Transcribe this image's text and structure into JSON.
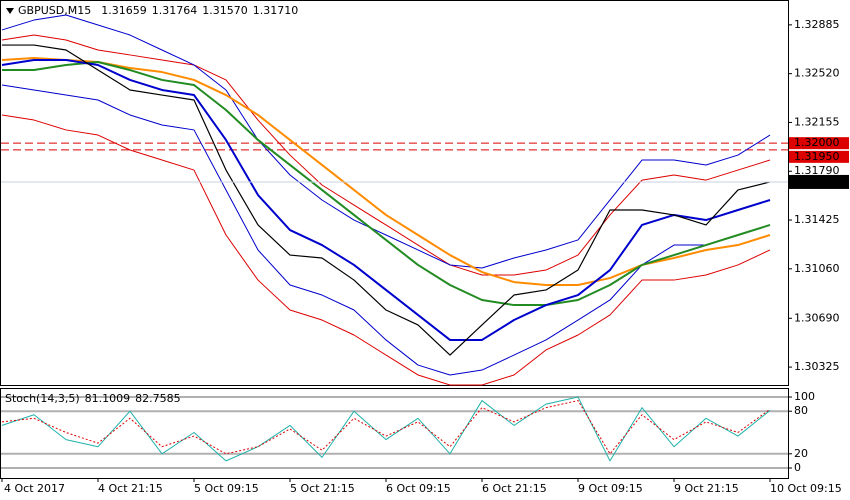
{
  "chart_data": [
    {
      "type": "line",
      "title": "GBPUSD,M15",
      "header_values": [
        {
          "value": 1.31659,
          "label": "1.31659"
        },
        {
          "value": 1.31764,
          "label": "1.31764"
        },
        {
          "value": 1.3157,
          "label": "1.31570"
        },
        {
          "value": 1.3171,
          "label": "1.31710"
        }
      ],
      "categories": [
        "4 Oct 2017",
        null,
        null,
        "4 Oct 21:15",
        null,
        null,
        "5 Oct 09:15",
        null,
        null,
        "5 Oct 21:15",
        null,
        null,
        "6 Oct 09:15",
        null,
        null,
        "6 Oct 21:15",
        null,
        null,
        "9 Oct 09:15",
        null,
        null,
        "9 Oct 21:15",
        null,
        null,
        "10 Oct 09:15"
      ],
      "series": [
        {
          "color": "#dd0000",
          "width": 1,
          "values": [
            1.32772,
            1.32809,
            1.32772,
            1.32697,
            1.3266,
            1.32622,
            1.32585,
            1.32473,
            1.32173,
            1.31911,
            1.31687,
            1.31537,
            1.31388,
            1.31238,
            1.31089,
            1.31014,
            1.31014,
            1.31051,
            1.31163,
            1.31463,
            1.31724,
            1.31762,
            1.31724,
            1.31799,
            1.31874
          ]
        },
        {
          "color": "#dd0000",
          "width": 1,
          "values": [
            1.32211,
            1.32173,
            1.32099,
            1.32061,
            1.31949,
            1.31874,
            1.31799,
            1.31313,
            1.30976,
            1.30752,
            1.30677,
            1.30565,
            1.30415,
            1.30266,
            1.30191,
            1.30191,
            1.30266,
            1.30453,
            1.30565,
            1.30715,
            1.30976,
            1.30976,
            1.31014,
            1.31089,
            1.31201
          ]
        },
        {
          "color": "#0000cc",
          "width": 1,
          "values": [
            1.32847,
            1.32921,
            1.32959,
            1.32884,
            1.32809,
            1.32697,
            1.32585,
            1.32398,
            1.32024,
            1.31762,
            1.31575,
            1.31425,
            1.31313,
            1.31201,
            1.31089,
            1.31066,
            1.31141,
            1.31201,
            1.31276,
            1.31575,
            1.31874,
            1.31874,
            1.31837,
            1.31911,
            1.32061
          ]
        },
        {
          "color": "#0000cc",
          "width": 1,
          "values": [
            1.32435,
            1.32398,
            1.3236,
            1.32323,
            1.32211,
            1.32136,
            1.32099,
            1.3165,
            1.31201,
            1.30939,
            1.30864,
            1.30752,
            1.30528,
            1.3034,
            1.30266,
            1.30303,
            1.30415,
            1.30528,
            1.30677,
            1.30827,
            1.31089,
            1.31238,
            1.31238,
            1.31313,
            1.31388
          ]
        },
        {
          "color": "#ff8c00",
          "width": 2,
          "values": [
            1.32622,
            1.32637,
            1.32622,
            1.32607,
            1.32562,
            1.32532,
            1.32473,
            1.3236,
            1.32211,
            1.32024,
            1.31837,
            1.3165,
            1.31463,
            1.31313,
            1.31163,
            1.31036,
            1.30961,
            1.30939,
            1.30939,
            1.30991,
            1.31089,
            1.31141,
            1.31201,
            1.31238,
            1.31313
          ]
        },
        {
          "color": "#228b22",
          "width": 2,
          "values": [
            1.32547,
            1.32547,
            1.32585,
            1.32607,
            1.32547,
            1.32473,
            1.32435,
            1.32248,
            1.32024,
            1.31837,
            1.3165,
            1.31463,
            1.31276,
            1.31089,
            1.30939,
            1.30827,
            1.30789,
            1.30789,
            1.30827,
            1.30939,
            1.31089,
            1.31163,
            1.31238,
            1.31313,
            1.31388
          ]
        },
        {
          "color": "#0000cc",
          "width": 2,
          "values": [
            1.32585,
            1.32622,
            1.32622,
            1.32585,
            1.32473,
            1.32398,
            1.3236,
            1.32024,
            1.31612,
            1.3135,
            1.31238,
            1.31089,
            1.30902,
            1.30715,
            1.30528,
            1.30528,
            1.30677,
            1.30789,
            1.30864,
            1.31051,
            1.31388,
            1.31463,
            1.31425,
            1.315,
            1.31575
          ]
        },
        {
          "color": "#000000",
          "width": 1.2,
          "values": [
            1.32734,
            1.32734,
            1.32697,
            1.32547,
            1.32398,
            1.3236,
            1.32323,
            1.31799,
            1.31388,
            1.31163,
            1.31141,
            1.30976,
            1.30752,
            1.3064,
            1.30415,
            1.3064,
            1.30864,
            1.30902,
            1.31051,
            1.315,
            1.315,
            1.31463,
            1.31388,
            1.3165,
            1.3171
          ]
        }
      ],
      "ylim": [
        1.30191,
        1.33071
      ],
      "yticks": [
        {
          "value": 1.32885,
          "label": "1.32885"
        },
        {
          "value": 1.3252,
          "label": "1.32520"
        },
        {
          "value": 1.32155,
          "label": "1.32155"
        },
        {
          "value": 1.3179,
          "label": "1.31790"
        },
        {
          "value": 1.31425,
          "label": "1.31425"
        },
        {
          "value": 1.3106,
          "label": "1.31060"
        },
        {
          "value": 1.3069,
          "label": "1.30690"
        },
        {
          "value": 1.30325,
          "label": "1.30325"
        }
      ],
      "levels": [
        {
          "value": 1.32,
          "label": "1.32000",
          "color": "#dd0000"
        },
        {
          "value": 1.3195,
          "label": "1.31950",
          "color": "#dd0000"
        }
      ],
      "last_price": {
        "value": 1.3171,
        "label": "1.31710"
      }
    },
    {
      "type": "line",
      "title": "Stoch(14,3,5)",
      "series": [
        {
          "color": "#20b2aa",
          "width": 1,
          "dash": false,
          "values": [
            60,
            75,
            40,
            30,
            80,
            20,
            50,
            10,
            30,
            60,
            15,
            80,
            40,
            70,
            20,
            95,
            60,
            90,
            100,
            10,
            85,
            30,
            70,
            45,
            81.1009
          ]
        },
        {
          "color": "#dd0000",
          "width": 1,
          "dash": true,
          "values": [
            65,
            70,
            50,
            35,
            70,
            30,
            45,
            20,
            30,
            55,
            25,
            70,
            45,
            65,
            30,
            85,
            65,
            85,
            95,
            20,
            75,
            40,
            65,
            50,
            82.7585
          ]
        }
      ],
      "ylim": [
        -14.1,
        112.7
      ],
      "yticks": [
        100,
        80,
        20,
        0
      ]
    }
  ]
}
